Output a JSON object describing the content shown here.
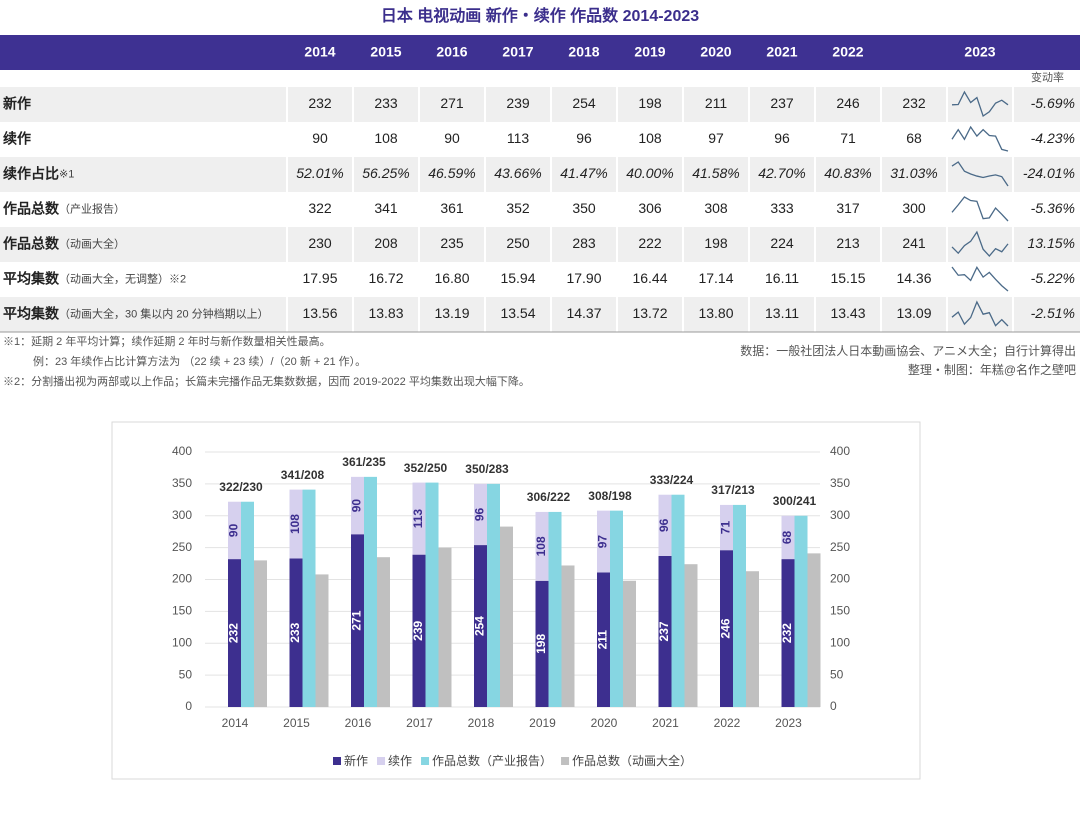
{
  "title": "日本 电视动画 新作・续作 作品数 2014-2023",
  "table": {
    "header": [
      "2014",
      "2015",
      "2016",
      "2017",
      "2018",
      "2019",
      "2020",
      "2021",
      "2022",
      "2023"
    ],
    "change_header": "变动率",
    "rows": [
      {
        "label": "新作",
        "cells": [
          "232",
          "233",
          "271",
          "239",
          "254",
          "198",
          "211",
          "237",
          "246",
          "232"
        ],
        "change": "-5.69%"
      },
      {
        "label": "续作",
        "cells": [
          "90",
          "108",
          "90",
          "113",
          "96",
          "108",
          "97",
          "96",
          "71",
          "68"
        ],
        "change": "-4.23%"
      },
      {
        "label": "续作占比",
        "note": "※1",
        "cells": [
          "52.01%",
          "56.25%",
          "46.59%",
          "43.66%",
          "41.47%",
          "40.00%",
          "41.58%",
          "42.70%",
          "40.83%",
          "31.03%"
        ],
        "change": "-24.01%"
      },
      {
        "label": "作品总数",
        "note": "（产业报告）",
        "cells": [
          "322",
          "341",
          "361",
          "352",
          "350",
          "306",
          "308",
          "333",
          "317",
          "300"
        ],
        "change": "-5.36%"
      },
      {
        "label": "作品总数",
        "note": "（动画大全）",
        "cells": [
          "230",
          "208",
          "235",
          "250",
          "283",
          "222",
          "198",
          "224",
          "213",
          "241"
        ],
        "change": "13.15%"
      },
      {
        "label": "平均集数",
        "note": "（动画大全，无调整）※2",
        "cells": [
          "17.95",
          "16.72",
          "16.80",
          "15.94",
          "17.90",
          "16.44",
          "17.14",
          "16.11",
          "15.15",
          "14.36"
        ],
        "change": "-5.22%"
      },
      {
        "label": "平均集数",
        "note": "（动画大全，30 集以内 20 分钟档期以上）",
        "cells": [
          "13.56",
          "13.83",
          "13.19",
          "13.54",
          "14.37",
          "13.72",
          "13.80",
          "13.11",
          "13.43",
          "13.09"
        ],
        "change": "-2.51%"
      }
    ]
  },
  "notes": [
    "※1：延期 2 年平均计算；续作延期 2 年时与新作数量相关性最高。",
    "例：23 年续作占比计算方法为 （22 续 + 23 续）/（20 新 + 21 作）。",
    "※2：分割播出视为两部或以上作品；长篇未完播作品无集数数据，因而 2019-2022 平均集数出现大幅下降。"
  ],
  "source": [
    "数据：一般社团法人日本動画協会、アニメ大全；自行计算得出",
    "整理・制图：年糕@名作之壁吧"
  ],
  "chart_data": {
    "type": "bar",
    "categories": [
      "2014",
      "2015",
      "2016",
      "2017",
      "2018",
      "2019",
      "2020",
      "2021",
      "2022",
      "2023"
    ],
    "series": [
      {
        "name": "新作",
        "color": "#3d2f8f",
        "stack": "a",
        "values": [
          232,
          233,
          271,
          239,
          254,
          198,
          211,
          237,
          246,
          232
        ]
      },
      {
        "name": "续作",
        "color": "#d6d0ee",
        "stack": "a",
        "values": [
          90,
          108,
          90,
          113,
          96,
          108,
          97,
          96,
          71,
          68
        ]
      },
      {
        "name": "作品总数（产业报告）",
        "color": "#86d6e2",
        "values": [
          322,
          341,
          361,
          352,
          350,
          306,
          308,
          333,
          317,
          300
        ]
      },
      {
        "name": "作品总数（动画大全）",
        "color": "#c0c0c0",
        "axis": "y2",
        "values": [
          230,
          208,
          235,
          250,
          283,
          222,
          198,
          224,
          213,
          241
        ]
      }
    ],
    "top_labels": [
      "322/230",
      "341/208",
      "361/235",
      "352/250",
      "350/283",
      "306/222",
      "308/198",
      "333/224",
      "317/213",
      "300/241"
    ],
    "ylim": [
      0,
      400
    ],
    "yticks": [
      0,
      50,
      100,
      150,
      200,
      250,
      300,
      350,
      400
    ],
    "y2lim": [
      0,
      400
    ],
    "y2ticks": [
      0,
      50,
      100,
      150,
      200,
      250,
      300,
      350,
      400
    ],
    "grid": true,
    "legend": "bottom"
  }
}
